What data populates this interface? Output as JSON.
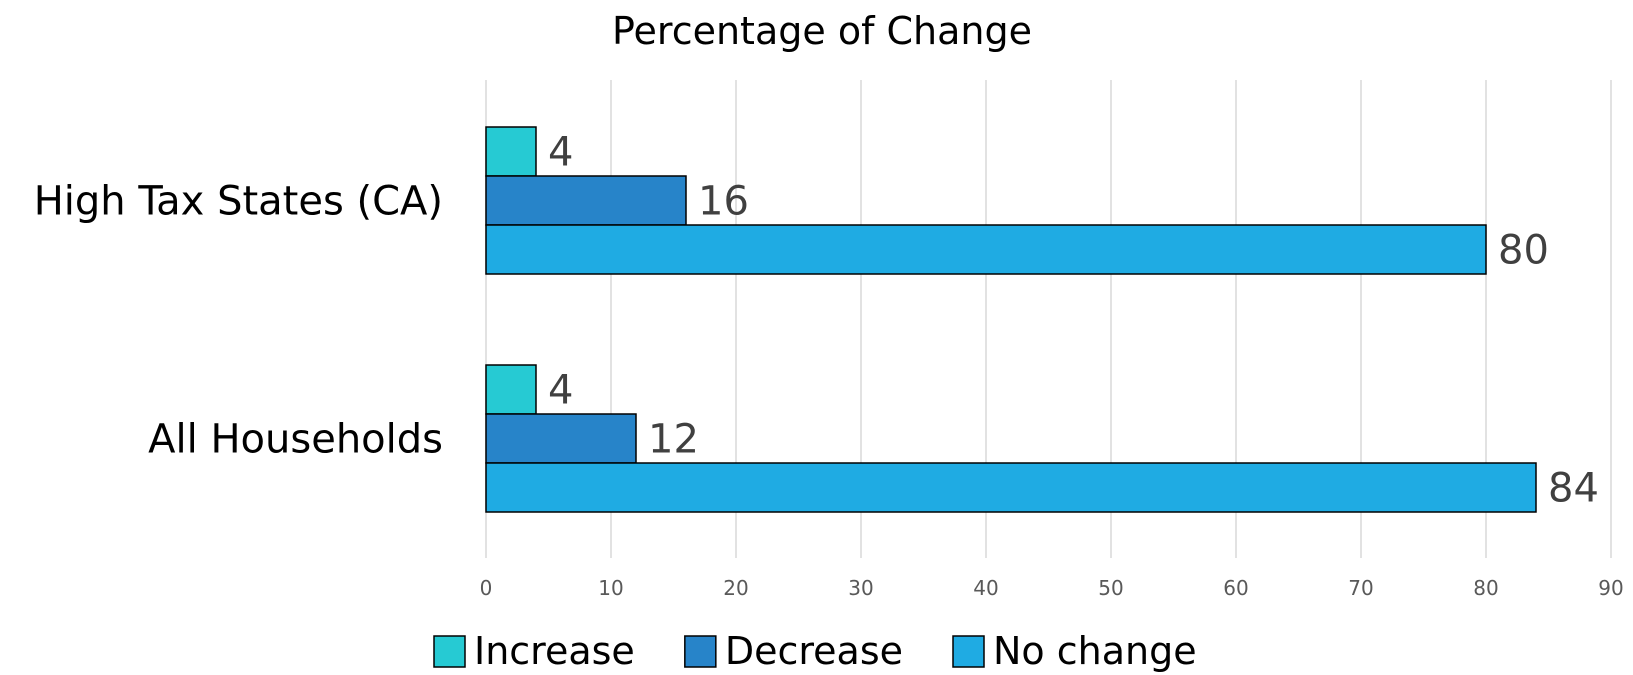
{
  "chart_data": {
    "type": "bar",
    "orientation": "horizontal",
    "title": "Percentage of Change",
    "categories": [
      "High Tax States (CA)",
      "All Households"
    ],
    "series": [
      {
        "name": "Increase",
        "values": [
          4,
          4
        ],
        "color": "#26cad3"
      },
      {
        "name": "Decrease",
        "values": [
          16,
          12
        ],
        "color": "#2784c9"
      },
      {
        "name": "No change",
        "values": [
          80,
          84
        ],
        "color": "#1fabe3"
      }
    ],
    "xlim": [
      0,
      90
    ],
    "xticks": [
      0,
      10,
      20,
      30,
      40,
      50,
      60,
      70,
      80,
      90
    ],
    "data_labels": true,
    "grid": "vertical",
    "legend": "bottom"
  }
}
